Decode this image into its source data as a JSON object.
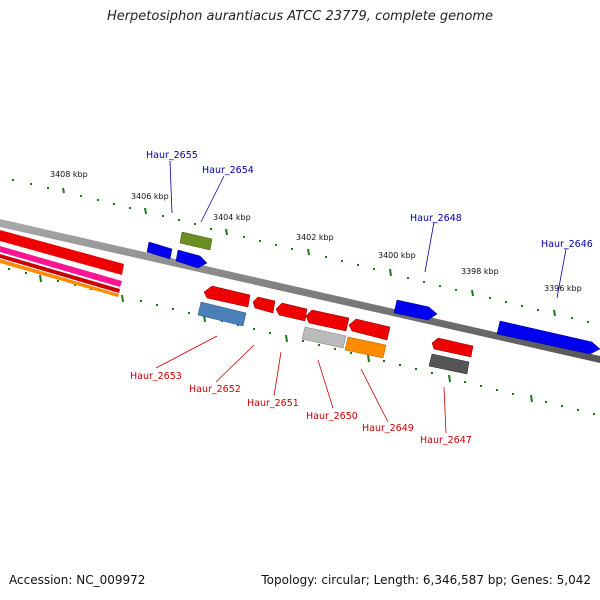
{
  "title": "Herpetosiphon aurantiacus ATCC 23779, complete genome",
  "footer": {
    "accession": "Accession: NC_009972",
    "stats": "Topology: circular; Length: 6,346,587 bp; Genes: 5,042"
  },
  "ticks": [
    "3408 kbp",
    "3406 kbp",
    "3404 kbp",
    "3402 kbp",
    "3400 kbp",
    "3398 kbp",
    "3396 kbp"
  ],
  "forward_genes": [
    {
      "name": "Haur_2655",
      "color": "#0000ee"
    },
    {
      "name": "Haur_2654",
      "color": "#0000ee"
    },
    {
      "name": "Haur_2648",
      "color": "#0000ee"
    },
    {
      "name": "Haur_2646",
      "color": "#0000ee"
    }
  ],
  "reverse_genes": [
    {
      "name": "Haur_2653",
      "color": "#4a7fb8"
    },
    {
      "name": "Haur_2652",
      "color": "#ee0000"
    },
    {
      "name": "Haur_2651",
      "color": "#ee0000"
    },
    {
      "name": "Haur_2650",
      "color": "#bbbbbb"
    },
    {
      "name": "Haur_2649",
      "color": "#ff8c00"
    },
    {
      "name": "Haur_2647",
      "color": "#555555"
    }
  ],
  "colors": {
    "forward_label": "#0000aa",
    "reverse_label": "#cc0000",
    "tick_major": "#1a7a1a",
    "backbone": "#7a7a7a",
    "olive_feature": "#6b8e23",
    "pink_feature": "#ff1493"
  }
}
